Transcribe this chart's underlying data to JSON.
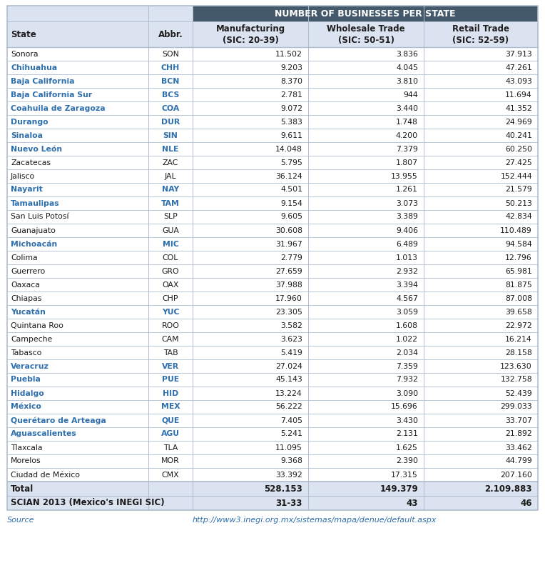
{
  "title": "NUMBER OF BUSINESSES PER STATE",
  "rows": [
    [
      "Sonora",
      "SON",
      "11.502",
      "3.836",
      "37.913",
      false
    ],
    [
      "Chihuahua",
      "CHH",
      "9.203",
      "4.045",
      "47.261",
      true
    ],
    [
      "Baja California",
      "BCN",
      "8.370",
      "3.810",
      "43.093",
      true
    ],
    [
      "Baja California Sur",
      "BCS",
      "2.781",
      "944",
      "11.694",
      true
    ],
    [
      "Coahuila de Zaragoza",
      "COA",
      "9.072",
      "3.440",
      "41.352",
      true
    ],
    [
      "Durango",
      "DUR",
      "5.383",
      "1.748",
      "24.969",
      true
    ],
    [
      "Sinaloa",
      "SIN",
      "9.611",
      "4.200",
      "40.241",
      true
    ],
    [
      "Nuevo León",
      "NLE",
      "14.048",
      "7.379",
      "60.250",
      true
    ],
    [
      "Zacatecas",
      "ZAC",
      "5.795",
      "1.807",
      "27.425",
      false
    ],
    [
      "Jalisco",
      "JAL",
      "36.124",
      "13.955",
      "152.444",
      false
    ],
    [
      "Nayarit",
      "NAY",
      "4.501",
      "1.261",
      "21.579",
      true
    ],
    [
      "Tamaulipas",
      "TAM",
      "9.154",
      "3.073",
      "50.213",
      true
    ],
    [
      "San Luis Potosí",
      "SLP",
      "9.605",
      "3.389",
      "42.834",
      false
    ],
    [
      "Guanajuato",
      "GUA",
      "30.608",
      "9.406",
      "110.489",
      false
    ],
    [
      "Michoacán",
      "MIC",
      "31.967",
      "6.489",
      "94.584",
      true
    ],
    [
      "Colima",
      "COL",
      "2.779",
      "1.013",
      "12.796",
      false
    ],
    [
      "Guerrero",
      "GRO",
      "27.659",
      "2.932",
      "65.981",
      false
    ],
    [
      "Oaxaca",
      "OAX",
      "37.988",
      "3.394",
      "81.875",
      false
    ],
    [
      "Chiapas",
      "CHP",
      "17.960",
      "4.567",
      "87.008",
      false
    ],
    [
      "Yucatán",
      "YUC",
      "23.305",
      "3.059",
      "39.658",
      true
    ],
    [
      "Quintana Roo",
      "ROO",
      "3.582",
      "1.608",
      "22.972",
      false
    ],
    [
      "Campeche",
      "CAM",
      "3.623",
      "1.022",
      "16.214",
      false
    ],
    [
      "Tabasco",
      "TAB",
      "5.419",
      "2.034",
      "28.158",
      false
    ],
    [
      "Veracruz",
      "VER",
      "27.024",
      "7.359",
      "123.630",
      true
    ],
    [
      "Puebla",
      "PUE",
      "45.143",
      "7.932",
      "132.758",
      true
    ],
    [
      "Hidalgo",
      "HID",
      "13.224",
      "3.090",
      "52.439",
      true
    ],
    [
      "México",
      "MEX",
      "56.222",
      "15.696",
      "299.033",
      true
    ],
    [
      "Querétaro de Arteaga",
      "QUE",
      "7.405",
      "3.430",
      "33.707",
      true
    ],
    [
      "Aguascalientes",
      "AGU",
      "5.241",
      "2.131",
      "21.892",
      true
    ],
    [
      "Tlaxcala",
      "TLA",
      "11.095",
      "1.625",
      "33.462",
      false
    ],
    [
      "Morelos",
      "MOR",
      "9.368",
      "2.390",
      "44.799",
      false
    ],
    [
      "Ciudad de México",
      "CMX",
      "33.392",
      "17.315",
      "207.160",
      false
    ]
  ],
  "total_row": [
    "Total",
    "",
    "528.153",
    "149.379",
    "2.109.883"
  ],
  "scian_row": [
    "SCIAN 2013 (Mexico's INEGI SIC)",
    "",
    "31-33",
    "43",
    "46"
  ],
  "source_text": "Source",
  "source_url": "http://www3.inegi.org.mx/sistemas/mapa/denue/default.aspx",
  "header_bg": "#445a6b",
  "header_text_color": "#ffffff",
  "subheader_bg": "#dce3f0",
  "subheader_text_color": "#1f1f1f",
  "blue_text_color": "#2e6fad",
  "normal_text_color": "#1a1a1a",
  "row_bg": "#ffffff",
  "total_bg": "#dce3f0",
  "border_color": "#b0bdd0",
  "source_color": "#2e6fad",
  "title_fontsize": 9.0,
  "header_fontsize": 8.5,
  "data_fontsize": 7.8
}
